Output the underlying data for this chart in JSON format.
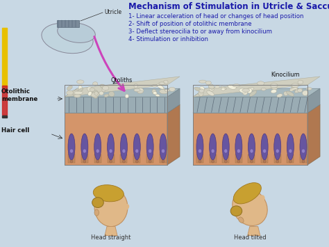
{
  "title": "Mechanism of Stimulation in Utricle & Saccule",
  "title_color": "#1a1aaa",
  "title_fontsize": 8.5,
  "bg_color": "#c8d8e4",
  "points": [
    "1- Linear acceleration of head or changes of head position",
    "2- Shift of position of otolithic membrane",
    "3- Deflect stereocilia to or away from kinocilium",
    "4- Stimulation or inhibition"
  ],
  "points_color": "#1a1aaa",
  "points_fontsize": 6.2,
  "label_otoliths": "Otoliths",
  "label_kinocilium": "Kinocilium",
  "label_utricle": "Utricle",
  "label_otolithic_membrane": "Otolithic\nmembrane",
  "label_hair_cell": "Hair cell",
  "label_head_straight": "Head straight",
  "label_head_tilted": "Head tilted",
  "arrow_color": "#cc44bb",
  "sidebar_yellow": "#e8c000",
  "sidebar_red": "#cc2222",
  "skin_color": "#d4956a",
  "skin_dark": "#c07850",
  "hair_color": "#c8a030",
  "hair_dark": "#a07820",
  "cell_purple": "#6655a0",
  "cell_light": "#9080c8",
  "otolith_color": "#d8d8c8",
  "membrane_color": "#b0b8b0",
  "tan_color": "#c8906a",
  "figsize": [
    4.74,
    3.55
  ],
  "dpi": 100
}
